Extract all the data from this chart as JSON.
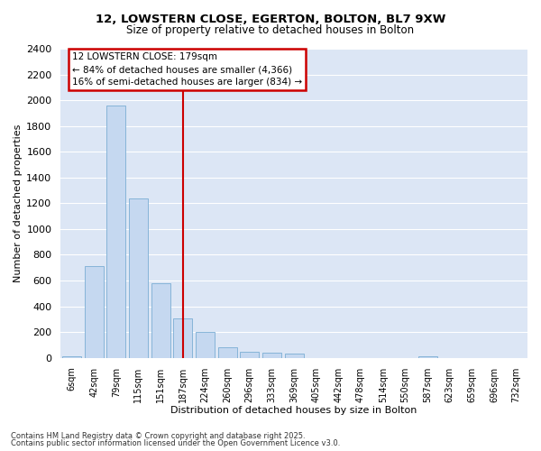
{
  "title_line1": "12, LOWSTERN CLOSE, EGERTON, BOLTON, BL7 9XW",
  "title_line2": "Size of property relative to detached houses in Bolton",
  "xlabel": "Distribution of detached houses by size in Bolton",
  "ylabel": "Number of detached properties",
  "bar_fill_color": "#c5d8f0",
  "bar_edge_color": "#7aadd4",
  "categories": [
    "6sqm",
    "42sqm",
    "79sqm",
    "115sqm",
    "151sqm",
    "187sqm",
    "224sqm",
    "260sqm",
    "296sqm",
    "333sqm",
    "369sqm",
    "405sqm",
    "442sqm",
    "478sqm",
    "514sqm",
    "550sqm",
    "587sqm",
    "623sqm",
    "659sqm",
    "696sqm",
    "732sqm"
  ],
  "values": [
    15,
    710,
    1960,
    1240,
    580,
    305,
    200,
    85,
    50,
    40,
    30,
    0,
    0,
    0,
    0,
    0,
    10,
    0,
    0,
    0,
    0
  ],
  "ylim": [
    0,
    2400
  ],
  "yticks": [
    0,
    200,
    400,
    600,
    800,
    1000,
    1200,
    1400,
    1600,
    1800,
    2000,
    2200,
    2400
  ],
  "vline_x": 5,
  "vline_color": "#cc0000",
  "annotation_title": "12 LOWSTERN CLOSE: 179sqm",
  "annotation_line1": "← 84% of detached houses are smaller (4,366)",
  "annotation_line2": "16% of semi-detached houses are larger (834) →",
  "annotation_box_color": "#cc0000",
  "plot_bg_color": "#dce6f5",
  "fig_bg_color": "#ffffff",
  "grid_color": "#ffffff",
  "footnote1": "Contains HM Land Registry data © Crown copyright and database right 2025.",
  "footnote2": "Contains public sector information licensed under the Open Government Licence v3.0."
}
